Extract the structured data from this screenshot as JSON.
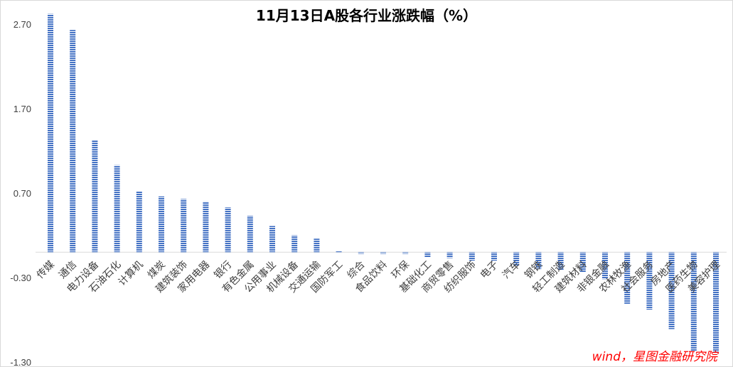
{
  "chart_data": {
    "type": "bar",
    "title": "11月13日A股各行业涨跌幅（%）",
    "xlabel": "",
    "ylabel": "",
    "ylim": [
      -1.3,
      2.7
    ],
    "yticks": [
      "2.70",
      "1.70",
      "0.70",
      "-0.30",
      "-1.30"
    ],
    "grid": false,
    "legend": "none",
    "bar_color": "#4472c4",
    "categories": [
      "传媒",
      "通信",
      "电力设备",
      "石油石化",
      "计算机",
      "煤炭",
      "建筑装饰",
      "家用电器",
      "银行",
      "有色金属",
      "公用事业",
      "机械设备",
      "交通运输",
      "国防军工",
      "综合",
      "食品饮料",
      "环保",
      "基础化工",
      "商贸零售",
      "纺织服饰",
      "电子",
      "汽车",
      "钢铁",
      "轻工制造",
      "建筑材料",
      "非银金融",
      "农林牧渔",
      "社会服务",
      "房地产",
      "医药生物",
      "美容护理"
    ],
    "values": [
      2.82,
      2.63,
      1.33,
      1.03,
      0.72,
      0.66,
      0.63,
      0.6,
      0.53,
      0.43,
      0.31,
      0.2,
      0.16,
      0.01,
      -0.02,
      -0.02,
      -0.02,
      -0.06,
      -0.07,
      -0.1,
      -0.1,
      -0.16,
      -0.2,
      -0.21,
      -0.24,
      -0.32,
      -0.61,
      -0.68,
      -0.91,
      -1.17,
      -1.18
    ]
  },
  "source_note": "wind，星图金融研究院"
}
